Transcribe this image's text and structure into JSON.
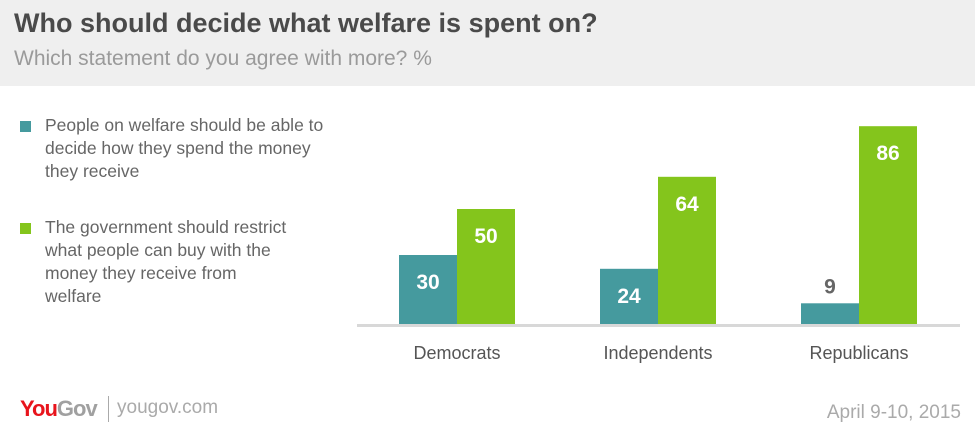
{
  "header": {
    "title": "Who should decide what welfare is spent on?",
    "subtitle": "Which statement do you agree with more? %"
  },
  "chart_data": {
    "type": "bar",
    "title": "Who should decide what welfare is spent on?",
    "subtitle": "Which statement do you agree with more? %",
    "categories": [
      "Democrats",
      "Independents",
      "Republicans"
    ],
    "series": [
      {
        "name": "People on welfare should be able to decide how they spend the money they receive",
        "color": "#459a9e",
        "values": [
          30,
          24,
          9
        ]
      },
      {
        "name": "The government should restrict what people can buy with the money they receive from welfare",
        "color": "#84c51c",
        "values": [
          50,
          64,
          86
        ]
      }
    ],
    "ylim": [
      0,
      90
    ],
    "legend_position": "left"
  },
  "footer": {
    "logo": "YouGov",
    "url": "yougov.com",
    "date": "April 9-10, 2015",
    "logo_colors": {
      "you": "#e8141c",
      "gov": "#a0a0a0"
    }
  }
}
